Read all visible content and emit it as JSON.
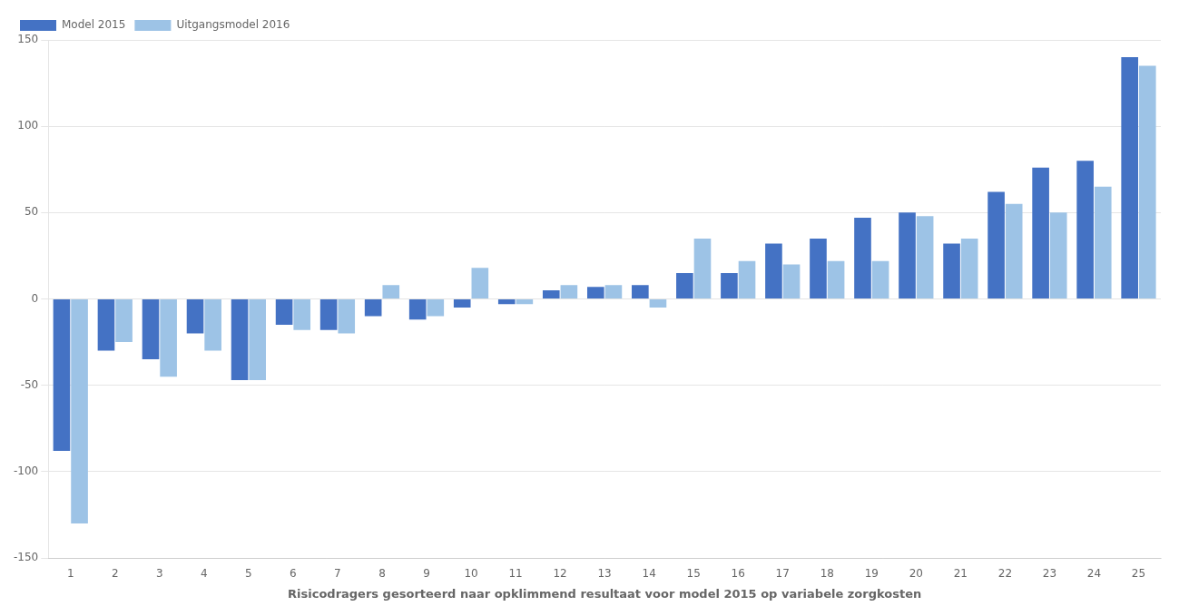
{
  "chart_data": {
    "type": "bar",
    "xlabel": "Risicodragers gesorteerd naar opklimmend resultaat voor model 2015 op variabele zorgkosten",
    "categories": [
      "1",
      "2",
      "3",
      "4",
      "5",
      "6",
      "7",
      "8",
      "9",
      "10",
      "11",
      "12",
      "13",
      "14",
      "15",
      "16",
      "17",
      "18",
      "19",
      "20",
      "21",
      "22",
      "23",
      "24",
      "25"
    ],
    "series": [
      {
        "name": "Model 2015",
        "color": "#4472C4",
        "values": [
          -88,
          -30,
          -35,
          -20,
          -47,
          -15,
          -18,
          -10,
          -12,
          -5,
          -3,
          5,
          7,
          8,
          15,
          15,
          32,
          35,
          47,
          50,
          32,
          62,
          76,
          80,
          140
        ]
      },
      {
        "name": "Uitgangsmodel 2016",
        "color": "#9DC3E6",
        "values": [
          -130,
          -25,
          -45,
          -30,
          -47,
          -18,
          -20,
          8,
          -10,
          18,
          -3,
          8,
          8,
          -5,
          35,
          22,
          20,
          22,
          22,
          48,
          35,
          55,
          50,
          65,
          135
        ]
      }
    ],
    "ylim": [
      -150,
      150
    ],
    "yticks": [
      -150,
      -100,
      -50,
      0,
      50,
      100,
      150
    ],
    "grid": true,
    "legend": "upper left"
  }
}
